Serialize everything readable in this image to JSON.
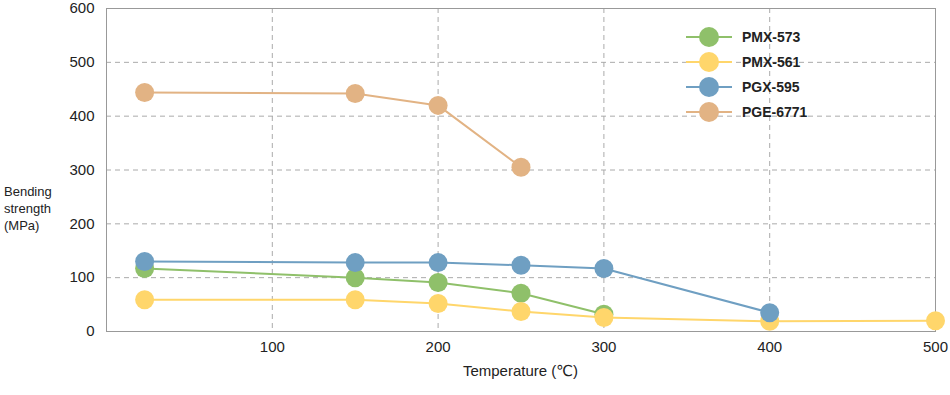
{
  "chart_data": {
    "type": "line",
    "x_label": "Temperature (℃)",
    "y_label": "Bending strength (MPa)",
    "xlim": [
      0,
      500
    ],
    "ylim": [
      0,
      600
    ],
    "xticks": [
      100,
      200,
      300,
      400,
      500
    ],
    "yticks": [
      0,
      100,
      200,
      300,
      400,
      500,
      600
    ],
    "grid": true,
    "legend": "top-right",
    "marker": "circle",
    "series": [
      {
        "name": "PMX-573",
        "color": "#8fc06a",
        "x": [
          23,
          150,
          200,
          250,
          300
        ],
        "values": [
          117,
          100,
          91,
          71,
          32
        ]
      },
      {
        "name": "PMX-561",
        "color": "#ffd66b",
        "x": [
          23,
          150,
          200,
          250,
          300,
          400,
          500
        ],
        "values": [
          59,
          59,
          52,
          37,
          26,
          19,
          20
        ]
      },
      {
        "name": "PGX-595",
        "color": "#6f9fc2",
        "x": [
          23,
          150,
          200,
          250,
          300,
          400
        ],
        "values": [
          130,
          128,
          128,
          123,
          117,
          35
        ]
      },
      {
        "name": "PGE-6771",
        "color": "#e2b384",
        "x": [
          23,
          150,
          200,
          250
        ],
        "values": [
          444,
          442,
          420,
          305
        ]
      }
    ]
  }
}
